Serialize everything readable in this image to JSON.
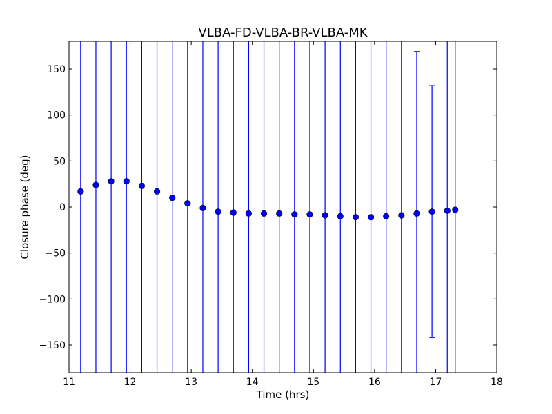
{
  "chart_data": {
    "type": "scatter",
    "title": "VLBA-FD-VLBA-BR-VLBA-MK",
    "xlabel": "Time (hrs)",
    "ylabel": "Closure phase (deg)",
    "xlim": [
      11,
      18
    ],
    "ylim": [
      -180,
      180
    ],
    "x_ticks": [
      11,
      12,
      13,
      14,
      15,
      16,
      17,
      18
    ],
    "x_tick_labels": [
      "11",
      "12",
      "13",
      "14",
      "15",
      "16",
      "17",
      "18"
    ],
    "y_ticks": [
      -150,
      -100,
      -50,
      0,
      50,
      100,
      150
    ],
    "y_tick_labels": [
      "−150",
      "−100",
      "−50",
      "0",
      "50",
      "100",
      "150"
    ],
    "grid": false,
    "marker_color": "#0000ff",
    "errorbar_color": "#0000ff",
    "series": [
      {
        "x": [
          11.19,
          11.44,
          11.69,
          11.94,
          12.19,
          12.44,
          12.69,
          12.94,
          13.19,
          13.44,
          13.69,
          13.94,
          14.19,
          14.44,
          14.69,
          14.94,
          15.19,
          15.44,
          15.69,
          15.94,
          16.19,
          16.44,
          16.69,
          16.94,
          17.19,
          17.32
        ],
        "y": [
          17,
          24,
          28,
          28,
          23,
          17,
          10,
          4,
          -1,
          -5,
          -6,
          -7,
          -7,
          -7,
          -8,
          -8,
          -9,
          -10,
          -11,
          -11,
          -10,
          -9,
          -7,
          -5,
          -4,
          -3
        ],
        "yerr_low": [
          null,
          null,
          null,
          null,
          null,
          null,
          null,
          null,
          null,
          null,
          null,
          null,
          null,
          null,
          null,
          null,
          null,
          null,
          null,
          null,
          null,
          null,
          null,
          -142,
          null,
          null
        ],
        "yerr_high": [
          null,
          null,
          null,
          null,
          null,
          null,
          null,
          null,
          null,
          null,
          null,
          null,
          null,
          null,
          null,
          null,
          null,
          null,
          null,
          null,
          null,
          null,
          169,
          132,
          null,
          null
        ]
      }
    ]
  }
}
